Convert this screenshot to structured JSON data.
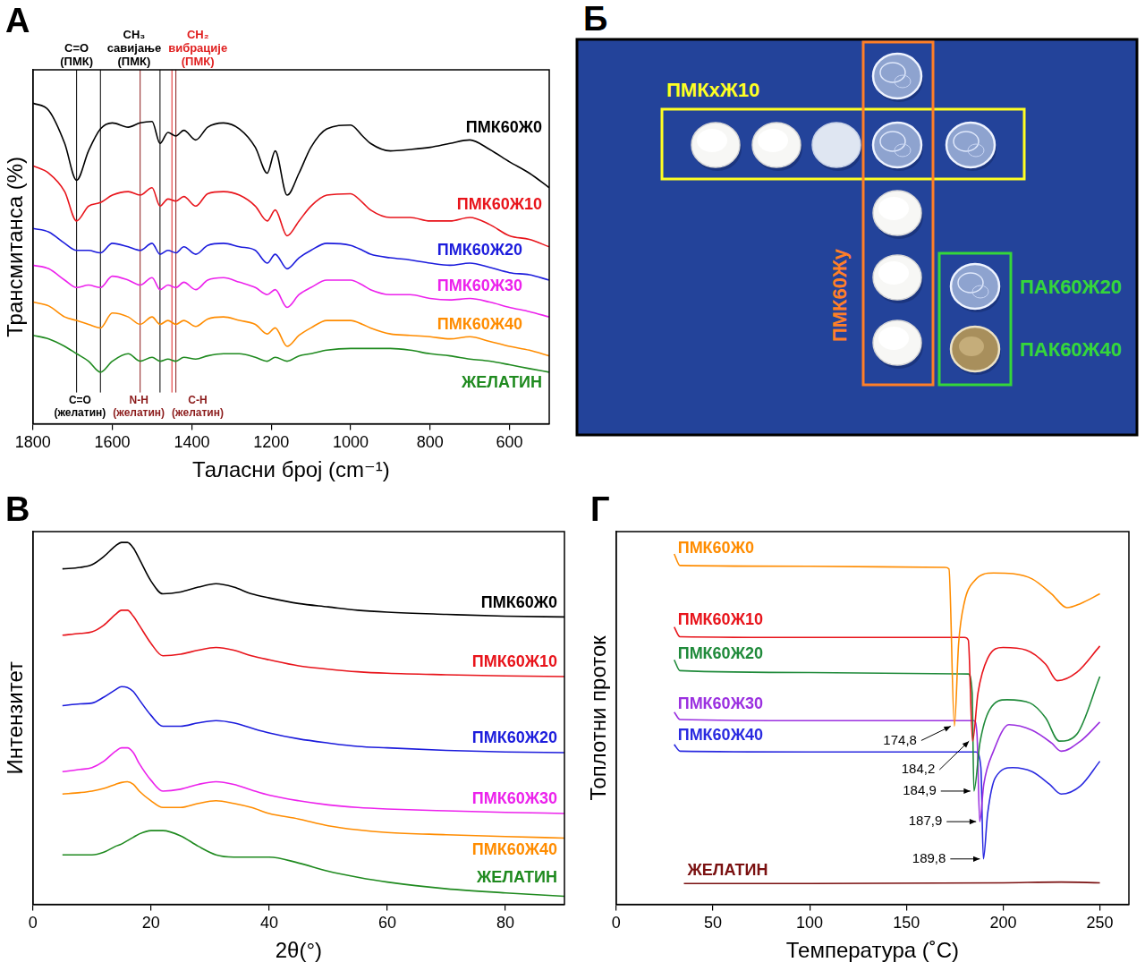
{
  "chart_data": [
    {
      "panel": "А",
      "type": "line",
      "xlabel": "Таласни број (cm⁻¹)",
      "ylabel": "Трансмитанса (%)",
      "xlim": [
        1800,
        500
      ],
      "xticks": [
        1800,
        1600,
        1400,
        1200,
        1000,
        800,
        600
      ],
      "ylim": [
        0,
        100
      ],
      "tick_labels": "x",
      "grid": false,
      "x": [
        1800,
        1760,
        1720,
        1690,
        1660,
        1630,
        1600,
        1560,
        1530,
        1500,
        1480,
        1460,
        1440,
        1420,
        1390,
        1360,
        1320,
        1280,
        1240,
        1210,
        1190,
        1160,
        1130,
        1100,
        1060,
        1000,
        970,
        950,
        900,
        850,
        800,
        750,
        700,
        650,
        600,
        550,
        500
      ],
      "series": [
        {
          "name": "ПМК60Ж0",
          "color": "#000000",
          "values": [
            90.6,
            88.5,
            79.2,
            68.8,
            77.1,
            83.3,
            85.0,
            83.8,
            85.0,
            85.4,
            79.2,
            82.3,
            81.3,
            82.9,
            80.2,
            83.8,
            85.0,
            83.3,
            78.1,
            70.8,
            77.1,
            64.6,
            70.8,
            78.1,
            83.3,
            84.4,
            81.3,
            79.2,
            77.1,
            77.5,
            78.1,
            79.2,
            80.2,
            77.5,
            74.0,
            70.8,
            66.7
          ]
        },
        {
          "name": "ПМК60Ж10",
          "color": "#e8141b",
          "values": [
            72.9,
            70.8,
            65.6,
            57.3,
            61.5,
            62.5,
            64.6,
            65.6,
            64.6,
            66.7,
            61.5,
            63.5,
            62.9,
            64.2,
            61.5,
            65.0,
            65.6,
            64.6,
            61.5,
            57.3,
            60.4,
            53.1,
            57.3,
            61.5,
            64.6,
            65.0,
            62.5,
            60.4,
            58.3,
            58.3,
            57.3,
            57.3,
            58.3,
            56.3,
            53.1,
            52.1,
            50.0
          ]
        },
        {
          "name": "ПМК60Ж20",
          "color": "#1c1cdc",
          "values": [
            55.2,
            54.2,
            51.0,
            49.0,
            49.0,
            48.3,
            51.0,
            50.0,
            49.0,
            51.0,
            47.9,
            49.0,
            48.3,
            50.0,
            47.9,
            50.4,
            51.0,
            50.0,
            49.0,
            45.4,
            47.9,
            43.8,
            46.9,
            49.0,
            51.0,
            50.4,
            49.0,
            47.9,
            46.9,
            46.3,
            45.4,
            44.8,
            45.4,
            44.2,
            42.7,
            42.1,
            40.6
          ]
        },
        {
          "name": "ПМК60Ж30",
          "color": "#ec22ec",
          "values": [
            44.8,
            43.8,
            40.6,
            38.5,
            39.2,
            38.5,
            41.7,
            40.6,
            39.2,
            41.3,
            37.9,
            39.2,
            38.5,
            40.0,
            37.9,
            40.6,
            41.3,
            40.0,
            38.5,
            36.5,
            37.9,
            32.9,
            36.5,
            38.5,
            40.6,
            40.6,
            39.2,
            37.9,
            36.5,
            36.5,
            35.4,
            35.0,
            35.4,
            34.4,
            32.9,
            31.7,
            30.2
          ]
        },
        {
          "name": "ПМК60Ж40",
          "color": "#ff8c00",
          "values": [
            34.4,
            33.3,
            30.2,
            29.2,
            28.1,
            27.1,
            31.3,
            30.2,
            28.1,
            30.2,
            28.1,
            29.2,
            28.1,
            29.2,
            27.5,
            29.6,
            30.2,
            29.2,
            28.1,
            25.4,
            27.1,
            21.9,
            25.0,
            27.1,
            29.2,
            29.2,
            28.1,
            27.1,
            25.4,
            25.0,
            24.6,
            24.0,
            24.6,
            23.3,
            21.9,
            20.8,
            19.2
          ]
        },
        {
          "name": "ЖЕЛАТИН",
          "color": "#1f8a1f",
          "values": [
            25.0,
            24.0,
            21.9,
            19.8,
            17.7,
            14.6,
            17.7,
            19.8,
            17.7,
            18.8,
            17.7,
            18.3,
            17.7,
            18.8,
            18.3,
            19.2,
            19.8,
            19.8,
            18.8,
            17.7,
            18.8,
            17.7,
            19.2,
            19.8,
            20.8,
            21.3,
            21.3,
            21.3,
            21.3,
            20.8,
            19.8,
            19.2,
            18.3,
            17.7,
            16.7,
            15.6,
            14.6
          ]
        }
      ],
      "annotations": [
        [
          {
            "x": 1690,
            "text": [
              "C=O",
              "(ПМК)"
            ],
            "color": "#000000"
          },
          {
            "x": 1480,
            "text": [
              "CH₃",
              "савијање",
              "(ПМК)"
            ],
            "color": "#000000"
          },
          {
            "x": 1450,
            "text": [
              "CH₂",
              "вибрације",
              "(ПМК)"
            ],
            "color": "#e02020"
          }
        ],
        [
          {
            "x": 1630,
            "text": [
              "C=O",
              "(желатин)"
            ],
            "color": "#000000"
          },
          {
            "x": 1530,
            "text": [
              "N-H",
              "(желатин)"
            ],
            "color": "#8b1a1a"
          },
          {
            "x": 1440,
            "text": [
              "C-H",
              "(желатин)"
            ],
            "color": "#8b1a1a"
          }
        ]
      ]
    },
    {
      "panel": "В",
      "type": "line",
      "xlabel": "2θ(°)",
      "ylabel": "Интензитет",
      "xlim": [
        0,
        90
      ],
      "xticks": [
        0,
        20,
        40,
        60,
        80
      ],
      "ylim": [
        0,
        100
      ],
      "tick_labels": "x",
      "grid": false,
      "x": [
        5,
        8,
        10,
        12,
        14,
        15,
        16,
        17,
        18,
        20,
        22,
        25,
        28,
        31,
        34,
        37,
        40,
        45,
        50,
        55,
        60,
        70,
        80,
        90
      ],
      "series": [
        {
          "name": "ПМК60Ж0",
          "color": "#000000",
          "values": [
            90.0,
            90.4,
            91.1,
            93.3,
            96.2,
            97.1,
            97.1,
            95.6,
            92.7,
            86.7,
            83.3,
            83.8,
            85.1,
            86.0,
            85.1,
            83.3,
            82.2,
            80.7,
            79.8,
            78.9,
            78.4,
            77.8,
            77.3,
            77.1
          ]
        },
        {
          "name": "ПМК60Ж10",
          "color": "#e8141b",
          "values": [
            72.2,
            72.7,
            73.1,
            74.9,
            77.8,
            78.9,
            78.9,
            77.3,
            74.9,
            70.0,
            66.7,
            67.1,
            68.2,
            68.9,
            68.2,
            66.7,
            65.6,
            64.0,
            63.1,
            62.4,
            62.0,
            61.6,
            61.3,
            61.1
          ]
        },
        {
          "name": "ПМК60Ж20",
          "color": "#1c1cdc",
          "values": [
            53.3,
            53.8,
            54.0,
            55.6,
            57.6,
            58.4,
            58.2,
            57.1,
            54.9,
            50.7,
            47.8,
            47.8,
            48.7,
            49.3,
            48.7,
            47.3,
            46.0,
            44.4,
            43.3,
            42.4,
            42.0,
            41.3,
            40.9,
            40.7
          ]
        },
        {
          "name": "ПМК60Ж30",
          "color": "#ec22ec",
          "values": [
            35.6,
            36.2,
            36.7,
            38.4,
            41.1,
            42.0,
            42.0,
            40.7,
            37.8,
            33.3,
            30.4,
            30.9,
            32.2,
            32.9,
            32.2,
            30.7,
            29.3,
            27.8,
            26.7,
            26.0,
            25.6,
            25.1,
            24.7,
            24.4
          ]
        },
        {
          "name": "ПМК60Ж40",
          "color": "#ff8c00",
          "values": [
            29.6,
            30.0,
            30.4,
            31.1,
            32.2,
            32.7,
            32.9,
            32.2,
            30.4,
            27.8,
            26.0,
            26.0,
            27.1,
            27.8,
            27.1,
            26.0,
            24.4,
            22.9,
            21.1,
            20.0,
            19.3,
            18.7,
            18.2,
            17.8
          ]
        },
        {
          "name": "ЖЕЛАТИН",
          "color": "#1f8a1f",
          "values": [
            13.3,
            13.3,
            13.3,
            14.0,
            15.6,
            16.2,
            17.1,
            18.0,
            18.9,
            19.8,
            19.8,
            18.4,
            15.6,
            13.3,
            12.7,
            12.7,
            12.7,
            11.1,
            8.9,
            7.3,
            6.0,
            4.2,
            3.1,
            2.2
          ]
        }
      ]
    },
    {
      "panel": "Г",
      "type": "line",
      "xlabel": "Температура (˚C)",
      "ylabel": "Топлотни проток",
      "xlim": [
        0,
        265
      ],
      "xticks": [
        0,
        50,
        100,
        150,
        200,
        250
      ],
      "ylim": [
        0,
        100
      ],
      "tick_labels": "x",
      "grid": false,
      "series": [
        {
          "name": "ПМК60Ж0",
          "color": "#ff8c00",
          "x": [
            30,
            33,
            100,
            170,
            172,
            174.8,
            177,
            180,
            185,
            195,
            205,
            215,
            225,
            233,
            240,
            250
          ],
          "values": [
            94.0,
            90.9,
            90.7,
            90.4,
            90.0,
            47.8,
            70.0,
            81.1,
            86.7,
            88.9,
            88.7,
            87.3,
            83.3,
            79.6,
            80.7,
            83.3
          ]
        },
        {
          "name": "ПМК60Ж10",
          "color": "#e8141b",
          "x": [
            30,
            33,
            100,
            180,
            182,
            184.2,
            187,
            192,
            200,
            212,
            222,
            228,
            238,
            250
          ],
          "values": [
            74.4,
            71.8,
            71.6,
            71.6,
            70.9,
            43.8,
            56.7,
            66.0,
            68.9,
            68.2,
            64.4,
            60.0,
            62.2,
            69.3
          ]
        },
        {
          "name": "ПМК60Ж20",
          "color": "#1f8a3a",
          "x": [
            30,
            33,
            100,
            182,
            184,
            184.9,
            188,
            193,
            202,
            214,
            222,
            229,
            238,
            250
          ],
          "values": [
            65.6,
            62.7,
            62.2,
            61.8,
            56.7,
            30.4,
            43.3,
            52.2,
            54.9,
            54.0,
            50.0,
            43.8,
            45.6,
            61.1
          ]
        },
        {
          "name": "ПМК60Ж30",
          "color": "#9b30e0",
          "x": [
            30,
            33,
            100,
            185,
            186.5,
            187.9,
            190,
            195,
            203,
            215,
            225,
            230,
            240,
            250
          ],
          "values": [
            51.6,
            49.6,
            49.3,
            49.3,
            45.6,
            22.2,
            32.2,
            41.1,
            48.2,
            46.7,
            43.3,
            41.1,
            43.8,
            48.9
          ]
        },
        {
          "name": "ПМК60Ж40",
          "color": "#2a2ae0",
          "x": [
            30,
            33,
            100,
            186,
            188.5,
            189.8,
            192,
            196,
            205,
            215,
            224,
            230,
            240,
            250
          ],
          "values": [
            42.9,
            41.1,
            40.9,
            40.9,
            36.7,
            12.2,
            24.4,
            34.0,
            36.7,
            35.6,
            32.2,
            29.6,
            31.8,
            38.4
          ]
        },
        {
          "name": "ЖЕЛАТИН",
          "color": "#7a1010",
          "x": [
            35,
            100,
            200,
            230,
            250
          ],
          "values": [
            5.6,
            5.6,
            5.8,
            6.0,
            5.8
          ]
        }
      ],
      "peaks": [
        {
          "x": 174.8,
          "label": "174,8"
        },
        {
          "x": 184.2,
          "label": "184,2"
        },
        {
          "x": 184.9,
          "label": "184,9"
        },
        {
          "x": 187.9,
          "label": "187,9"
        },
        {
          "x": 189.8,
          "label": "189,8"
        }
      ]
    }
  ],
  "photo": {
    "panel": "Б",
    "boxes": [
      {
        "labels": [
          "ПМКхЖ10"
        ],
        "color": "#ffff22"
      },
      {
        "labels": [
          "ПМК60Жу"
        ],
        "color": "#ff7f27"
      },
      {
        "labels": [
          "ПАК60Ж20",
          "ПАК60Ж40"
        ],
        "color": "#35d63a"
      }
    ]
  }
}
